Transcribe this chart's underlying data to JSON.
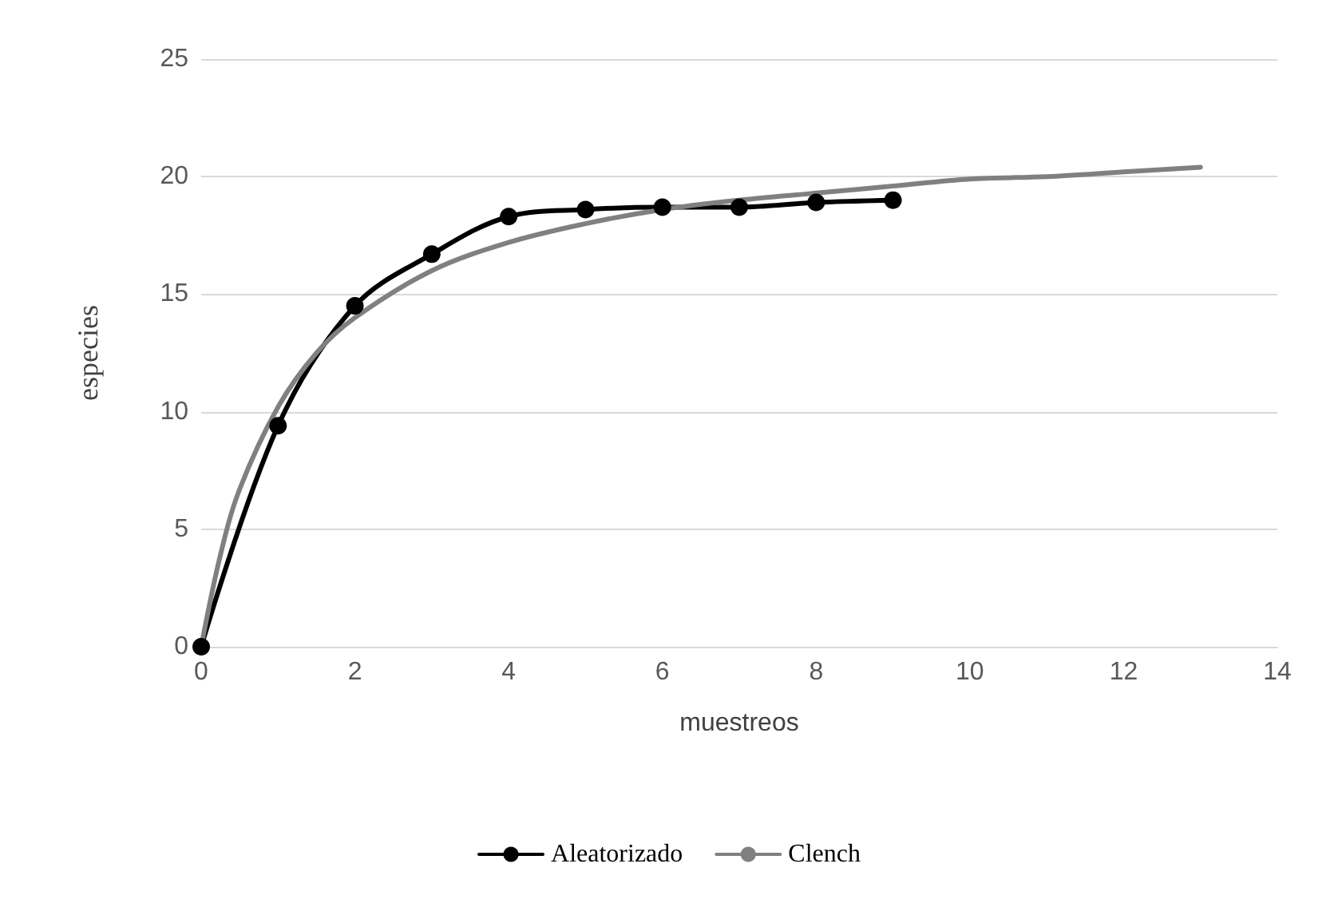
{
  "chart_data": {
    "type": "line",
    "xlabel": "muestreos",
    "ylabel": "especies",
    "xlim": [
      0,
      14
    ],
    "xticks": [
      0,
      2,
      4,
      6,
      8,
      10,
      12,
      14
    ],
    "ylim": [
      0,
      25
    ],
    "yticks": [
      0,
      5,
      10,
      15,
      20,
      25
    ],
    "grid": "y",
    "legend": "bottom",
    "series": [
      {
        "name": "Aleatorizado",
        "color": "#000000",
        "marker": "circle",
        "x": [
          0,
          1,
          2,
          3,
          4,
          5,
          6,
          7,
          8,
          9
        ],
        "values": [
          0,
          9.4,
          14.5,
          16.7,
          18.3,
          18.6,
          18.7,
          18.7,
          18.9,
          19.0
        ]
      },
      {
        "name": "Clench",
        "color": "#808080",
        "marker": "none",
        "x": [
          0,
          0.25,
          0.5,
          1,
          1.5,
          2,
          3,
          4,
          5,
          6,
          7,
          8,
          9,
          10,
          11,
          12,
          13
        ],
        "values": [
          0,
          3.9,
          6.7,
          10.2,
          12.5,
          14.0,
          16.0,
          17.2,
          18.0,
          18.6,
          19.0,
          19.3,
          19.6,
          19.9,
          20.0,
          20.2,
          20.4
        ]
      }
    ]
  }
}
